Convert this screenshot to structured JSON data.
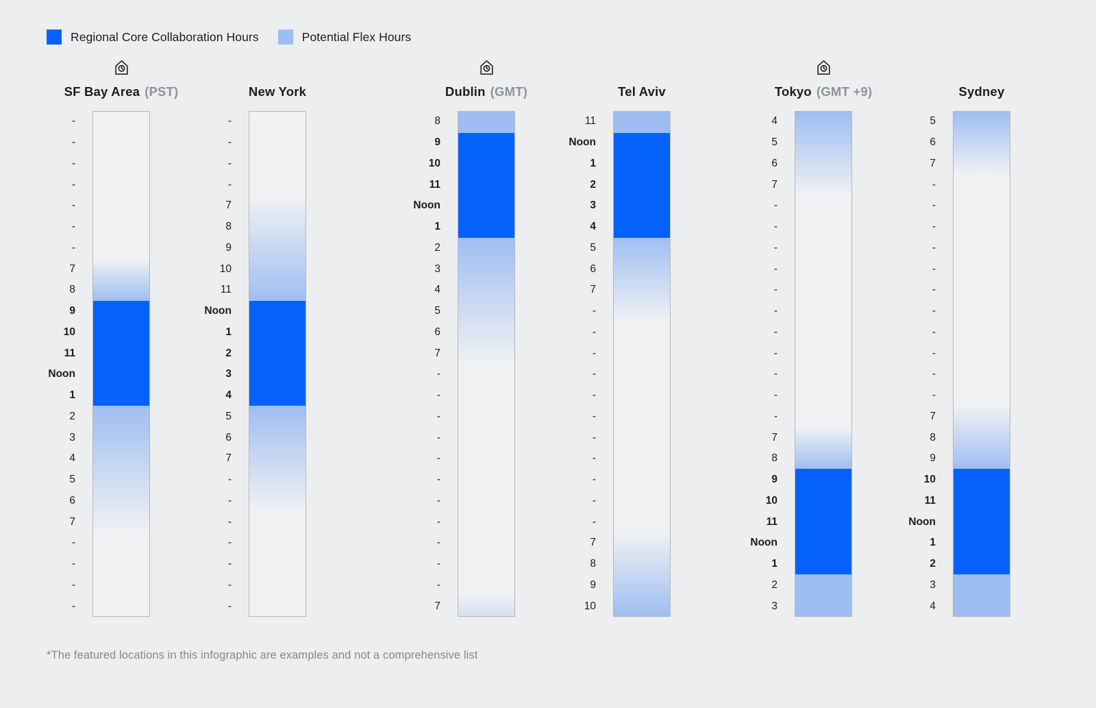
{
  "colors": {
    "core": "#0561fb",
    "flex": "#9ebef2",
    "flex_rgb": "158,190,242",
    "page_bg": "#edeef0",
    "bar_bg": "#f0f1f3",
    "bar_border": "#b4b7bb",
    "text": "#1b1c1e",
    "muted": "#8f9296"
  },
  "legend": {
    "core_label": "Regional Core Collaboration Hours",
    "flex_label": "Potential Flex Hours"
  },
  "footnote": "*The featured locations in this infographic are examples and not a comprehensive list",
  "chart_data": {
    "type": "heatmap",
    "legend": [
      "Regional Core Collaboration Hours",
      "Potential Flex Hours"
    ],
    "columns": [
      {
        "id": "sf-bay-area",
        "title": "SF Bay Area",
        "tz": "(PST)",
        "icon": true,
        "core_hours": [
          "9",
          "10",
          "11",
          "Noon",
          "1"
        ],
        "rows": [
          {
            "t": "-"
          },
          {
            "t": "-"
          },
          {
            "t": "-"
          },
          {
            "t": "-"
          },
          {
            "t": "-"
          },
          {
            "t": "-"
          },
          {
            "t": "-"
          },
          {
            "t": "7"
          },
          {
            "t": "8"
          },
          {
            "t": "9",
            "b": 1
          },
          {
            "t": "10",
            "b": 1
          },
          {
            "t": "11",
            "b": 1
          },
          {
            "t": "Noon",
            "b": 1
          },
          {
            "t": "1",
            "b": 1
          },
          {
            "t": "2"
          },
          {
            "t": "3"
          },
          {
            "t": "4"
          },
          {
            "t": "5"
          },
          {
            "t": "6"
          },
          {
            "t": "7"
          },
          {
            "t": "-"
          },
          {
            "t": "-"
          },
          {
            "t": "-"
          },
          {
            "t": "-"
          }
        ],
        "segments": [
          {
            "kind": "empty",
            "rows": 7
          },
          {
            "kind": "flex",
            "rows": 2,
            "from": 0,
            "to": 1
          },
          {
            "kind": "core",
            "rows": 5
          },
          {
            "kind": "flex",
            "rows": 6,
            "from": 1,
            "to": 0
          },
          {
            "kind": "empty",
            "rows": 4
          }
        ]
      },
      {
        "id": "new-york",
        "title": "New York",
        "tz": "",
        "icon": false,
        "core_hours": [
          "Noon",
          "1",
          "2",
          "3",
          "4"
        ],
        "rows": [
          {
            "t": "-"
          },
          {
            "t": "-"
          },
          {
            "t": "-"
          },
          {
            "t": "-"
          },
          {
            "t": "7"
          },
          {
            "t": "8"
          },
          {
            "t": "9"
          },
          {
            "t": "10"
          },
          {
            "t": "11"
          },
          {
            "t": "Noon",
            "b": 1
          },
          {
            "t": "1",
            "b": 1
          },
          {
            "t": "2",
            "b": 1
          },
          {
            "t": "3",
            "b": 1
          },
          {
            "t": "4",
            "b": 1
          },
          {
            "t": "5"
          },
          {
            "t": "6"
          },
          {
            "t": "7"
          },
          {
            "t": "-"
          },
          {
            "t": "-"
          },
          {
            "t": "-"
          },
          {
            "t": "-"
          },
          {
            "t": "-"
          },
          {
            "t": "-"
          },
          {
            "t": "-"
          }
        ],
        "segments": [
          {
            "kind": "empty",
            "rows": 4
          },
          {
            "kind": "flex",
            "rows": 5,
            "from": 0,
            "to": 1
          },
          {
            "kind": "core",
            "rows": 5
          },
          {
            "kind": "flex",
            "rows": 5,
            "from": 1,
            "to": 0
          },
          {
            "kind": "empty",
            "rows": 5
          }
        ]
      },
      {
        "id": "dublin",
        "title": "Dublin",
        "tz": "(GMT)",
        "icon": true,
        "core_hours": [
          "9",
          "10",
          "11",
          "Noon",
          "1"
        ],
        "rows": [
          {
            "t": "8"
          },
          {
            "t": "9",
            "b": 1
          },
          {
            "t": "10",
            "b": 1
          },
          {
            "t": "11",
            "b": 1
          },
          {
            "t": "Noon",
            "b": 1
          },
          {
            "t": "1",
            "b": 1
          },
          {
            "t": "2"
          },
          {
            "t": "3"
          },
          {
            "t": "4"
          },
          {
            "t": "5"
          },
          {
            "t": "6"
          },
          {
            "t": "7"
          },
          {
            "t": "-"
          },
          {
            "t": "-"
          },
          {
            "t": "-"
          },
          {
            "t": "-"
          },
          {
            "t": "-"
          },
          {
            "t": "-"
          },
          {
            "t": "-"
          },
          {
            "t": "-"
          },
          {
            "t": "-"
          },
          {
            "t": "-"
          },
          {
            "t": "-"
          },
          {
            "t": "7"
          }
        ],
        "segments": [
          {
            "kind": "flex",
            "rows": 1,
            "from": 1,
            "to": 1
          },
          {
            "kind": "core",
            "rows": 5
          },
          {
            "kind": "flex",
            "rows": 6,
            "from": 1,
            "to": 0
          },
          {
            "kind": "empty",
            "rows": 11
          },
          {
            "kind": "flex",
            "rows": 1,
            "from": 0,
            "to": 0.35
          }
        ]
      },
      {
        "id": "tel-aviv",
        "title": "Tel Aviv",
        "tz": "",
        "icon": false,
        "core_hours": [
          "Noon",
          "1",
          "2",
          "3",
          "4"
        ],
        "rows": [
          {
            "t": "11"
          },
          {
            "t": "Noon",
            "b": 1
          },
          {
            "t": "1",
            "b": 1
          },
          {
            "t": "2",
            "b": 1
          },
          {
            "t": "3",
            "b": 1
          },
          {
            "t": "4",
            "b": 1
          },
          {
            "t": "5"
          },
          {
            "t": "6"
          },
          {
            "t": "7"
          },
          {
            "t": "-"
          },
          {
            "t": "-"
          },
          {
            "t": "-"
          },
          {
            "t": "-"
          },
          {
            "t": "-"
          },
          {
            "t": "-"
          },
          {
            "t": "-"
          },
          {
            "t": "-"
          },
          {
            "t": "-"
          },
          {
            "t": "-"
          },
          {
            "t": "-"
          },
          {
            "t": "7"
          },
          {
            "t": "8"
          },
          {
            "t": "9"
          },
          {
            "t": "10"
          }
        ],
        "segments": [
          {
            "kind": "flex",
            "rows": 1,
            "from": 1,
            "to": 1
          },
          {
            "kind": "core",
            "rows": 5
          },
          {
            "kind": "flex",
            "rows": 4,
            "from": 1,
            "to": 0
          },
          {
            "kind": "empty",
            "rows": 10
          },
          {
            "kind": "flex",
            "rows": 4,
            "from": 0,
            "to": 1
          }
        ]
      },
      {
        "id": "tokyo",
        "title": "Tokyo",
        "tz": "(GMT +9)",
        "icon": true,
        "core_hours": [
          "9",
          "10",
          "11",
          "Noon",
          "1"
        ],
        "rows": [
          {
            "t": "4"
          },
          {
            "t": "5"
          },
          {
            "t": "6"
          },
          {
            "t": "7"
          },
          {
            "t": "-"
          },
          {
            "t": "-"
          },
          {
            "t": "-"
          },
          {
            "t": "-"
          },
          {
            "t": "-"
          },
          {
            "t": "-"
          },
          {
            "t": "-"
          },
          {
            "t": "-"
          },
          {
            "t": "-"
          },
          {
            "t": "-"
          },
          {
            "t": "-"
          },
          {
            "t": "7"
          },
          {
            "t": "8"
          },
          {
            "t": "9",
            "b": 1
          },
          {
            "t": "10",
            "b": 1
          },
          {
            "t": "11",
            "b": 1
          },
          {
            "t": "Noon",
            "b": 1
          },
          {
            "t": "1",
            "b": 1
          },
          {
            "t": "2"
          },
          {
            "t": "3"
          }
        ],
        "segments": [
          {
            "kind": "flex",
            "rows": 4,
            "from": 1,
            "to": 0
          },
          {
            "kind": "empty",
            "rows": 11
          },
          {
            "kind": "flex",
            "rows": 2,
            "from": 0,
            "to": 1
          },
          {
            "kind": "core",
            "rows": 5
          },
          {
            "kind": "flex",
            "rows": 2,
            "from": 1,
            "to": 1
          }
        ]
      },
      {
        "id": "sydney",
        "title": "Sydney",
        "tz": "",
        "icon": false,
        "core_hours": [
          "10",
          "11",
          "Noon",
          "1",
          "2"
        ],
        "rows": [
          {
            "t": "5"
          },
          {
            "t": "6"
          },
          {
            "t": "7"
          },
          {
            "t": "-"
          },
          {
            "t": "-"
          },
          {
            "t": "-"
          },
          {
            "t": "-"
          },
          {
            "t": "-"
          },
          {
            "t": "-"
          },
          {
            "t": "-"
          },
          {
            "t": "-"
          },
          {
            "t": "-"
          },
          {
            "t": "-"
          },
          {
            "t": "-"
          },
          {
            "t": "7"
          },
          {
            "t": "8"
          },
          {
            "t": "9"
          },
          {
            "t": "10",
            "b": 1
          },
          {
            "t": "11",
            "b": 1
          },
          {
            "t": "Noon",
            "b": 1
          },
          {
            "t": "1",
            "b": 1
          },
          {
            "t": "2",
            "b": 1
          },
          {
            "t": "3"
          },
          {
            "t": "4"
          }
        ],
        "segments": [
          {
            "kind": "flex",
            "rows": 3,
            "from": 1,
            "to": 0
          },
          {
            "kind": "empty",
            "rows": 11
          },
          {
            "kind": "flex",
            "rows": 3,
            "from": 0,
            "to": 1
          },
          {
            "kind": "core",
            "rows": 5
          },
          {
            "kind": "flex",
            "rows": 2,
            "from": 1,
            "to": 1
          }
        ]
      }
    ]
  }
}
